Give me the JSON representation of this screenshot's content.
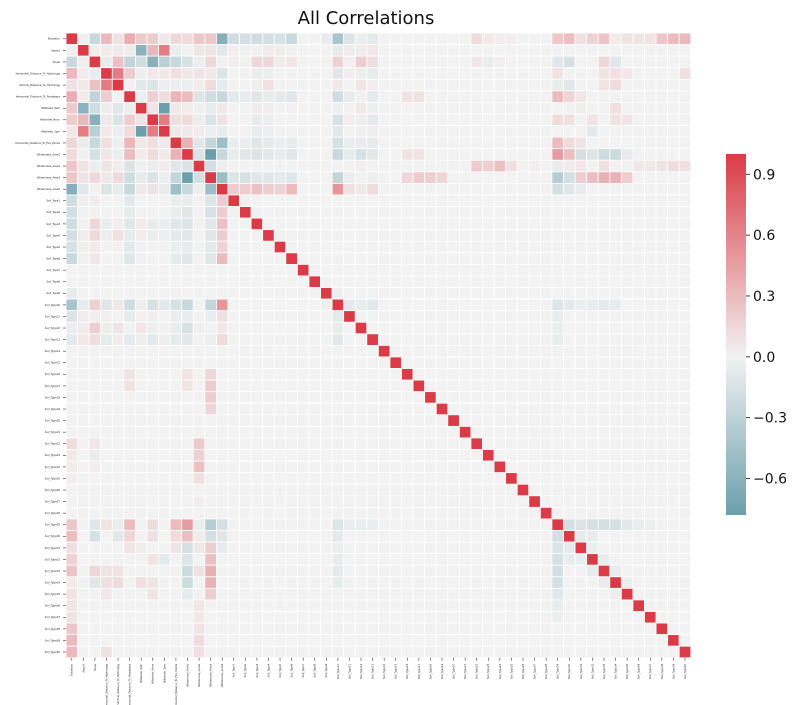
{
  "chart_data": {
    "type": "heatmap",
    "title": "All Correlations",
    "xlabel": "",
    "ylabel": "",
    "labels": [
      "Elevation",
      "Aspect",
      "Slope",
      "Horizontal_Distance_To_Hydrology",
      "Vertical_Distance_To_Hydrology",
      "Horizontal_Distance_To_Roadways",
      "Hillshade_9am",
      "Hillshade_Noon",
      "Hillshade_3pm",
      "Horizontal_Distance_To_Fire_Points",
      "Wilderness_Area1",
      "Wilderness_Area2",
      "Wilderness_Area3",
      "Wilderness_Area4",
      "Soil_Type1",
      "Soil_Type2",
      "Soil_Type3",
      "Soil_Type4",
      "Soil_Type5",
      "Soil_Type6",
      "Soil_Type7",
      "Soil_Type8",
      "Soil_Type9",
      "Soil_Type10",
      "Soil_Type11",
      "Soil_Type12",
      "Soil_Type13",
      "Soil_Type14",
      "Soil_Type15",
      "Soil_Type16",
      "Soil_Type17",
      "Soil_Type18",
      "Soil_Type19",
      "Soil_Type20",
      "Soil_Type21",
      "Soil_Type22",
      "Soil_Type23",
      "Soil_Type24",
      "Soil_Type25",
      "Soil_Type26",
      "Soil_Type27",
      "Soil_Type28",
      "Soil_Type29",
      "Soil_Type30",
      "Soil_Type31",
      "Soil_Type32",
      "Soil_Type33",
      "Soil_Type34",
      "Soil_Type35",
      "Soil_Type36",
      "Soil_Type37",
      "Soil_Type38",
      "Soil_Type39",
      "Soil_Type40"
    ],
    "cells": [
      [
        0,
        1,
        0.02
      ],
      [
        0,
        2,
        -0.24
      ],
      [
        0,
        3,
        0.31
      ],
      [
        0,
        4,
        0.09
      ],
      [
        0,
        5,
        0.37
      ],
      [
        0,
        6,
        0.22
      ],
      [
        0,
        7,
        0.21
      ],
      [
        0,
        8,
        0.06
      ],
      [
        0,
        9,
        0.15
      ],
      [
        0,
        10,
        0.13
      ],
      [
        0,
        11,
        0.24
      ],
      [
        0,
        12,
        0.24
      ],
      [
        0,
        13,
        -0.62
      ],
      [
        0,
        14,
        -0.2
      ],
      [
        0,
        15,
        -0.18
      ],
      [
        0,
        16,
        -0.2
      ],
      [
        0,
        17,
        -0.18
      ],
      [
        0,
        18,
        -0.16
      ],
      [
        0,
        19,
        -0.24
      ],
      [
        0,
        22,
        -0.06
      ],
      [
        0,
        23,
        -0.42
      ],
      [
        0,
        24,
        -0.13
      ],
      [
        0,
        25,
        -0.04
      ],
      [
        0,
        26,
        -0.08
      ],
      [
        0,
        35,
        0.12
      ],
      [
        0,
        36,
        0.05
      ],
      [
        0,
        37,
        0.03
      ],
      [
        0,
        38,
        0.02
      ],
      [
        0,
        42,
        0.23
      ],
      [
        0,
        43,
        0.28
      ],
      [
        0,
        44,
        0.1
      ],
      [
        0,
        45,
        0.18
      ],
      [
        0,
        46,
        0.25
      ],
      [
        0,
        47,
        0.04
      ],
      [
        0,
        48,
        0.08
      ],
      [
        0,
        49,
        0.07
      ],
      [
        0,
        50,
        0.08
      ],
      [
        0,
        51,
        0.24
      ],
      [
        0,
        52,
        0.3
      ],
      [
        0,
        53,
        0.31
      ],
      [
        1,
        2,
        0.03
      ],
      [
        1,
        3,
        0.04
      ],
      [
        1,
        4,
        0.05
      ],
      [
        1,
        5,
        0.04
      ],
      [
        1,
        6,
        -0.59
      ],
      [
        1,
        7,
        0.32
      ],
      [
        1,
        8,
        0.64
      ],
      [
        1,
        9,
        -0.05
      ],
      [
        1,
        10,
        -0.01
      ],
      [
        1,
        11,
        0.07
      ],
      [
        1,
        12,
        0.07
      ],
      [
        1,
        13,
        -0.09
      ],
      [
        1,
        14,
        0.02
      ],
      [
        1,
        15,
        -0.02
      ],
      [
        1,
        16,
        0.01
      ],
      [
        1,
        17,
        0.04
      ],
      [
        1,
        18,
        0.03
      ],
      [
        1,
        19,
        -0.02
      ],
      [
        1,
        23,
        -0.07
      ],
      [
        1,
        24,
        0.04
      ],
      [
        1,
        25,
        0.04
      ],
      [
        1,
        26,
        0.06
      ],
      [
        2,
        3,
        -0.06
      ],
      [
        2,
        4,
        0.27
      ],
      [
        2,
        5,
        -0.28
      ],
      [
        2,
        6,
        -0.2
      ],
      [
        2,
        7,
        -0.61
      ],
      [
        2,
        8,
        -0.33
      ],
      [
        2,
        9,
        -0.24
      ],
      [
        2,
        10,
        -0.16
      ],
      [
        2,
        11,
        -0.04
      ],
      [
        2,
        12,
        0.14
      ],
      [
        2,
        13,
        0.01
      ],
      [
        2,
        14,
        0.03
      ],
      [
        2,
        15,
        0.01
      ],
      [
        2,
        16,
        0.15
      ],
      [
        2,
        17,
        0.14
      ],
      [
        2,
        18,
        0.04
      ],
      [
        2,
        19,
        0.06
      ],
      [
        2,
        23,
        0.18
      ],
      [
        2,
        24,
        0.02
      ],
      [
        2,
        25,
        0.19
      ],
      [
        2,
        26,
        0.11
      ],
      [
        2,
        35,
        0.06
      ],
      [
        2,
        36,
        -0.05
      ],
      [
        2,
        37,
        0.02
      ],
      [
        2,
        42,
        -0.1
      ],
      [
        2,
        43,
        -0.16
      ],
      [
        2,
        46,
        0.15
      ],
      [
        2,
        47,
        -0.1
      ],
      [
        3,
        4,
        0.65
      ],
      [
        3,
        5,
        0.2
      ],
      [
        3,
        6,
        -0.03
      ],
      [
        3,
        7,
        0.05
      ],
      [
        3,
        8,
        0.05
      ],
      [
        3,
        9,
        0.1
      ],
      [
        3,
        10,
        0.06
      ],
      [
        3,
        11,
        0.07
      ],
      [
        3,
        12,
        0.05
      ],
      [
        3,
        13,
        -0.13
      ],
      [
        3,
        16,
        -0.05
      ],
      [
        3,
        17,
        -0.04
      ],
      [
        3,
        23,
        -0.1
      ],
      [
        3,
        24,
        0.02
      ],
      [
        3,
        25,
        -0.03
      ],
      [
        3,
        26,
        -0.07
      ],
      [
        3,
        42,
        0.08
      ],
      [
        3,
        46,
        0.08
      ],
      [
        3,
        47,
        0.1
      ],
      [
        3,
        48,
        0.06
      ],
      [
        3,
        53,
        0.1
      ],
      [
        4,
        5,
        0.01
      ],
      [
        4,
        6,
        -0.09
      ],
      [
        4,
        7,
        -0.13
      ],
      [
        4,
        8,
        -0.04
      ],
      [
        4,
        9,
        -0.03
      ],
      [
        4,
        10,
        -0.04
      ],
      [
        4,
        11,
        0.03
      ],
      [
        4,
        12,
        0.13
      ],
      [
        4,
        13,
        -0.07
      ],
      [
        4,
        16,
        0.02
      ],
      [
        4,
        17,
        0.09
      ],
      [
        4,
        23,
        0.05
      ],
      [
        4,
        25,
        0.07
      ],
      [
        4,
        26,
        0.02
      ],
      [
        4,
        42,
        -0.05
      ],
      [
        4,
        43,
        -0.09
      ],
      [
        4,
        46,
        0.08
      ],
      [
        4,
        47,
        0.12
      ],
      [
        5,
        6,
        -0.03
      ],
      [
        5,
        7,
        0.19
      ],
      [
        5,
        8,
        0.12
      ],
      [
        5,
        9,
        0.33
      ],
      [
        5,
        10,
        0.29
      ],
      [
        5,
        11,
        -0.13
      ],
      [
        5,
        12,
        -0.2
      ],
      [
        5,
        13,
        -0.24
      ],
      [
        5,
        14,
        -0.08
      ],
      [
        5,
        15,
        -0.07
      ],
      [
        5,
        16,
        -0.1
      ],
      [
        5,
        17,
        -0.07
      ],
      [
        5,
        18,
        -0.08
      ],
      [
        5,
        19,
        -0.1
      ],
      [
        5,
        23,
        -0.2
      ],
      [
        5,
        24,
        -0.07
      ],
      [
        5,
        25,
        -0.01
      ],
      [
        5,
        26,
        -0.08
      ],
      [
        5,
        29,
        0.08
      ],
      [
        5,
        30,
        0.09
      ],
      [
        5,
        42,
        0.3
      ],
      [
        5,
        43,
        0.16
      ],
      [
        5,
        44,
        0.07
      ],
      [
        6,
        7,
        0.07
      ],
      [
        6,
        8,
        -0.81
      ],
      [
        6,
        9,
        0.05
      ],
      [
        6,
        10,
        0.04
      ],
      [
        6,
        11,
        -0.02
      ],
      [
        6,
        12,
        -0.07
      ],
      [
        6,
        13,
        0.05
      ],
      [
        6,
        16,
        0.04
      ],
      [
        6,
        17,
        0.03
      ],
      [
        6,
        19,
        0.01
      ],
      [
        6,
        23,
        -0.03
      ],
      [
        6,
        24,
        0.01
      ],
      [
        6,
        25,
        0.06
      ],
      [
        6,
        26,
        -0.03
      ],
      [
        6,
        44,
        0.03
      ],
      [
        6,
        47,
        0.1
      ],
      [
        7,
        8,
        0.64
      ],
      [
        7,
        9,
        0.11
      ],
      [
        7,
        10,
        0.13
      ],
      [
        7,
        11,
        -0.04
      ],
      [
        7,
        12,
        -0.14
      ],
      [
        7,
        13,
        0.08
      ],
      [
        7,
        16,
        -0.06
      ],
      [
        7,
        17,
        -0.04
      ],
      [
        7,
        23,
        -0.15
      ],
      [
        7,
        24,
        0.02
      ],
      [
        7,
        25,
        -0.03
      ],
      [
        7,
        26,
        -0.08
      ],
      [
        7,
        42,
        0.12
      ],
      [
        7,
        43,
        0.1
      ],
      [
        7,
        45,
        0.08
      ],
      [
        7,
        47,
        0.08
      ],
      [
        7,
        48,
        0.07
      ],
      [
        8,
        9,
        0.05
      ],
      [
        8,
        10,
        0.05
      ],
      [
        8,
        11,
        0.04
      ],
      [
        8,
        12,
        -0.04
      ],
      [
        8,
        13,
        -0.06
      ],
      [
        8,
        16,
        -0.05
      ],
      [
        8,
        17,
        -0.04
      ],
      [
        8,
        23,
        -0.09
      ],
      [
        8,
        25,
        0.02
      ],
      [
        8,
        26,
        -0.03
      ],
      [
        8,
        45,
        -0.08
      ],
      [
        9,
        10,
        0.35
      ],
      [
        9,
        11,
        -0.1
      ],
      [
        9,
        12,
        -0.26
      ],
      [
        9,
        13,
        -0.48
      ],
      [
        9,
        14,
        -0.05
      ],
      [
        9,
        15,
        -0.04
      ],
      [
        9,
        16,
        -0.1
      ],
      [
        9,
        17,
        -0.08
      ],
      [
        9,
        18,
        -0.04
      ],
      [
        9,
        19,
        -0.07
      ],
      [
        9,
        23,
        -0.16
      ],
      [
        9,
        24,
        -0.05
      ],
      [
        9,
        25,
        -0.05
      ],
      [
        9,
        26,
        -0.07
      ],
      [
        9,
        42,
        0.3
      ],
      [
        9,
        43,
        0.13
      ],
      [
        9,
        44,
        0.07
      ],
      [
        10,
        11,
        -0.14
      ],
      [
        10,
        12,
        -0.79
      ],
      [
        10,
        13,
        -0.24
      ],
      [
        10,
        14,
        -0.06
      ],
      [
        10,
        15,
        -0.1
      ],
      [
        10,
        16,
        -0.13
      ],
      [
        10,
        17,
        -0.09
      ],
      [
        10,
        18,
        -0.07
      ],
      [
        10,
        19,
        -0.1
      ],
      [
        10,
        23,
        -0.24
      ],
      [
        10,
        24,
        -0.07
      ],
      [
        10,
        25,
        -0.16
      ],
      [
        10,
        26,
        -0.09
      ],
      [
        10,
        29,
        0.08
      ],
      [
        10,
        30,
        0.08
      ],
      [
        10,
        42,
        0.47
      ],
      [
        10,
        43,
        0.28
      ],
      [
        10,
        44,
        -0.17
      ],
      [
        10,
        45,
        -0.12
      ],
      [
        10,
        46,
        -0.22
      ],
      [
        10,
        47,
        -0.22
      ],
      [
        10,
        48,
        -0.07
      ],
      [
        11,
        12,
        -0.18
      ],
      [
        11,
        13,
        -0.03
      ],
      [
        11,
        25,
        0.02
      ],
      [
        11,
        35,
        0.22
      ],
      [
        11,
        36,
        0.19
      ],
      [
        11,
        37,
        0.27
      ],
      [
        11,
        38,
        0.1
      ],
      [
        11,
        40,
        0.02
      ],
      [
        11,
        42,
        -0.05
      ],
      [
        11,
        43,
        0.04
      ],
      [
        11,
        44,
        0.06
      ],
      [
        11,
        46,
        0.09
      ],
      [
        11,
        49,
        0.06
      ],
      [
        11,
        50,
        0.05
      ],
      [
        11,
        51,
        0.08
      ],
      [
        11,
        52,
        0.12
      ],
      [
        11,
        53,
        0.1
      ],
      [
        12,
        13,
        -0.49
      ],
      [
        12,
        14,
        -0.12
      ],
      [
        12,
        15,
        -0.16
      ],
      [
        12,
        16,
        -0.1
      ],
      [
        12,
        17,
        -0.1
      ],
      [
        12,
        18,
        -0.08
      ],
      [
        12,
        19,
        -0.1
      ],
      [
        12,
        23,
        -0.26
      ],
      [
        12,
        24,
        -0.05
      ],
      [
        12,
        26,
        -0.03
      ],
      [
        12,
        29,
        0.15
      ],
      [
        12,
        30,
        0.22
      ],
      [
        12,
        31,
        0.19
      ],
      [
        12,
        32,
        0.16
      ],
      [
        12,
        42,
        -0.36
      ],
      [
        12,
        43,
        -0.18
      ],
      [
        12,
        44,
        0.2
      ],
      [
        12,
        45,
        0.28
      ],
      [
        12,
        46,
        0.36
      ],
      [
        12,
        47,
        0.35
      ],
      [
        12,
        48,
        0.2
      ],
      [
        13,
        14,
        0.2
      ],
      [
        13,
        15,
        0.2
      ],
      [
        13,
        16,
        0.27
      ],
      [
        13,
        17,
        0.2
      ],
      [
        13,
        18,
        0.17
      ],
      [
        13,
        19,
        0.3
      ],
      [
        13,
        23,
        0.5
      ],
      [
        13,
        24,
        0.1
      ],
      [
        13,
        25,
        0.05
      ],
      [
        13,
        26,
        0.13
      ],
      [
        13,
        42,
        -0.17
      ],
      [
        13,
        43,
        -0.1
      ],
      [
        13,
        44,
        -0.06
      ],
      [
        14,
        15,
        -0.01
      ],
      [
        15,
        16,
        -0.01
      ],
      [
        16,
        17,
        -0.01
      ],
      [
        17,
        18,
        -0.01
      ],
      [
        22,
        23,
        -0.03
      ],
      [
        23,
        24,
        -0.08
      ],
      [
        23,
        25,
        -0.06
      ],
      [
        23,
        26,
        -0.09
      ],
      [
        23,
        42,
        -0.12
      ],
      [
        23,
        43,
        -0.08
      ],
      [
        23,
        44,
        -0.04
      ],
      [
        23,
        45,
        -0.06
      ],
      [
        23,
        46,
        -0.08
      ],
      [
        23,
        47,
        -0.07
      ],
      [
        24,
        42,
        -0.05
      ],
      [
        25,
        42,
        -0.05
      ],
      [
        26,
        42,
        -0.05
      ],
      [
        42,
        43,
        -0.18
      ],
      [
        42,
        44,
        -0.13
      ],
      [
        42,
        45,
        -0.17
      ],
      [
        42,
        46,
        -0.18
      ],
      [
        42,
        47,
        -0.17
      ],
      [
        42,
        48,
        -0.09
      ],
      [
        42,
        49,
        -0.05
      ],
      [
        42,
        50,
        -0.03
      ],
      [
        43,
        44,
        -0.07
      ],
      [
        43,
        45,
        -0.06
      ],
      [
        44,
        45,
        -0.04
      ],
      [
        45,
        46,
        -0.06
      ],
      [
        46,
        47,
        -0.06
      ],
      [
        47,
        48,
        -0.03
      ]
    ],
    "colorbar": {
      "min": -0.78,
      "max": 1.0,
      "ticks": [
        "−0.6",
        "−0.3",
        "0.0",
        "0.3",
        "0.6",
        "0.9"
      ],
      "tick_values": [
        -0.6,
        -0.3,
        0.0,
        0.3,
        0.6,
        0.9
      ]
    },
    "colors": {
      "negative": "#6b9fac",
      "neutral": "#f2f2f2",
      "positive": "#da3b46",
      "grid": "#ffffff"
    }
  }
}
